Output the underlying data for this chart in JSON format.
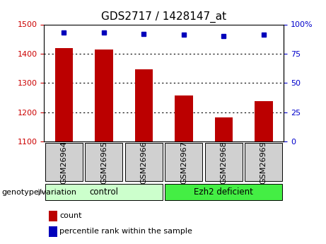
{
  "title": "GDS2717 / 1428147_at",
  "samples": [
    "GSM26964",
    "GSM26965",
    "GSM26966",
    "GSM26967",
    "GSM26968",
    "GSM26969"
  ],
  "bar_values": [
    1420,
    1415,
    1347,
    1258,
    1182,
    1238
  ],
  "percentile_values": [
    93,
    93,
    92,
    91,
    90,
    91
  ],
  "bar_color": "#bb0000",
  "dot_color": "#0000bb",
  "ylim_left": [
    1100,
    1500
  ],
  "ylim_right": [
    0,
    100
  ],
  "yticks_left": [
    1100,
    1200,
    1300,
    1400,
    1500
  ],
  "yticks_right": [
    0,
    25,
    50,
    75,
    100
  ],
  "groups": [
    {
      "label": "control",
      "indices": [
        0,
        1,
        2
      ],
      "color": "#ccffcc"
    },
    {
      "label": "Ezh2 deficient",
      "indices": [
        3,
        4,
        5
      ],
      "color": "#44ee44"
    }
  ],
  "group_label_prefix": "genotype/variation",
  "legend_count_label": "count",
  "legend_percentile_label": "percentile rank within the sample",
  "bar_width": 0.45,
  "sample_box_color": "#d0d0d0",
  "title_fontsize": 11,
  "tick_fontsize": 8,
  "label_fontsize": 8,
  "group_fontsize": 8.5,
  "base_value": 1100,
  "right_tick_color": "#0000cc",
  "left_tick_color": "#cc0000"
}
